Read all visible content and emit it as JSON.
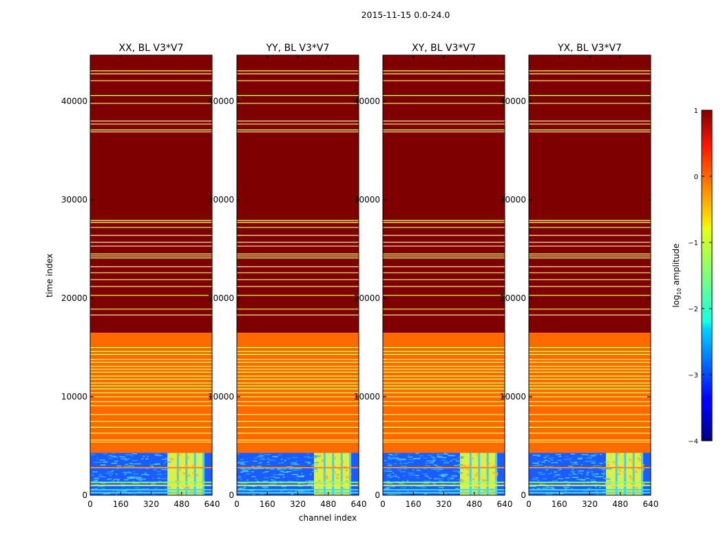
{
  "figure": {
    "suptitle": "2015-11-15 0.0-24.0",
    "ylabel": "time index",
    "xlabel": "channel index",
    "colorbar_label_prefix": "log",
    "colorbar_label_sub": "10",
    "colorbar_label_suffix": " amplitude"
  },
  "chart_data": {
    "type": "heatmap",
    "panels": [
      {
        "title": "XX, BL V3*V7"
      },
      {
        "title": "YY, BL V3*V7"
      },
      {
        "title": "XY, BL V3*V7"
      },
      {
        "title": "YX, BL V3*V7"
      }
    ],
    "xlim": [
      0,
      640
    ],
    "ylim": [
      0,
      44700
    ],
    "xticks": [
      0,
      160,
      320,
      480,
      640
    ],
    "yticks": [
      0,
      10000,
      20000,
      30000,
      40000
    ],
    "colorbar": {
      "range": [
        -4,
        1
      ],
      "ticks": [
        1,
        0,
        -1,
        -2,
        -3,
        -4
      ],
      "tick_labels": [
        "1",
        "0",
        "−1",
        "−2",
        "−3",
        "−4"
      ],
      "colormap": "jet"
    },
    "regions": [
      {
        "name": "high",
        "t_start": 16500,
        "t_end": 44700,
        "log_amplitude": 0.85,
        "color": "#7f0000"
      },
      {
        "name": "mid",
        "t_start": 4300,
        "t_end": 16500,
        "log_amplitude": -0.2,
        "color": "#ff6a00"
      },
      {
        "name": "noise",
        "t_start": 0,
        "t_end": 4300,
        "log_amplitude": -3.0,
        "color": "#1a5cff"
      },
      {
        "name": "rfi-band",
        "t_start": 0,
        "t_end": 4300,
        "ch_start": 405,
        "ch_end": 600,
        "log_amplitude": -1.2,
        "color": "#d7f04a"
      }
    ],
    "flag_rows_high": [
      43100,
      42800,
      42100,
      40600,
      39800,
      38000,
      37700,
      37100,
      36900,
      27900,
      27700,
      27200,
      26400,
      25700,
      25300,
      24500,
      24300,
      24100,
      23200,
      22600,
      21900,
      21200,
      20300,
      18900,
      18300
    ],
    "flag_rows_mid": [
      15000,
      14600,
      14300,
      13800,
      13500,
      13100,
      12800,
      12500,
      12100,
      11800,
      11400,
      11100,
      10800,
      10400,
      10000,
      9500,
      9100,
      8200,
      7500,
      6900,
      6300,
      5600,
      5400
    ],
    "noise_region_lines": [
      {
        "t": 2800,
        "color": "#ff8c1a"
      },
      {
        "t": 1300,
        "color": "#8aff7a"
      },
      {
        "t": 1000,
        "color": "#d8f050"
      },
      {
        "t": 550,
        "color": "#40e0e0"
      },
      {
        "t": 250,
        "color": "#40e0e0"
      }
    ],
    "flag_line_color": "#ffff66"
  }
}
